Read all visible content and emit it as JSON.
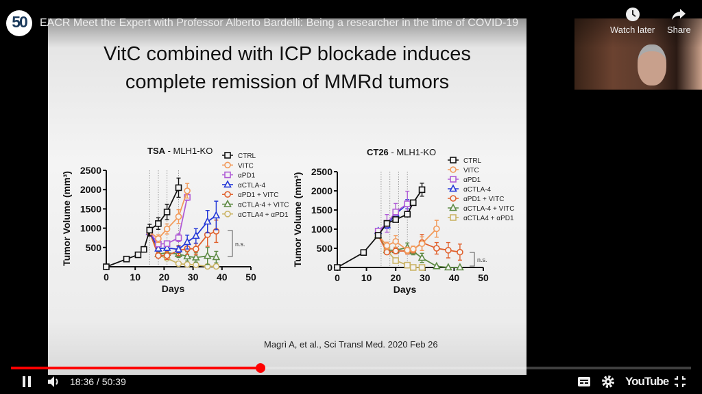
{
  "video": {
    "title": "EACR Meet the Expert with Professor Alberto Bardelli: Being a researcher in the time of COVID-19",
    "channel_logo_text": "50",
    "watch_later_label": "Watch later",
    "share_label": "Share",
    "current_time": "18:36",
    "duration": "50:39",
    "time_separator": " / ",
    "progress_fraction": 0.367,
    "brand": "YouTube",
    "accent_color": "#ff0000"
  },
  "slide": {
    "title_line1": "VitC combined with ICP blockade induces",
    "title_line2": "complete remission of MMRd tumors",
    "citation": "Magrì A, et al., Sci Transl Med. 2020 Feb 26"
  },
  "chart_data": [
    {
      "type": "line",
      "title_bold": "TSA",
      "title_rest": " - MLH1-KO",
      "xlabel": "Days",
      "ylabel": "Tumor Volume (mm³)",
      "xlim": [
        0,
        50
      ],
      "ylim": [
        0,
        2500
      ],
      "xticks": [
        0,
        10,
        20,
        30,
        40,
        50
      ],
      "yticks": [
        500,
        1000,
        1500,
        2000,
        2500
      ],
      "treatment_days": [
        15,
        18,
        21,
        25
      ],
      "annotation": "n.s.",
      "series": [
        {
          "name": "CTRL",
          "color": "#111111",
          "marker": "square",
          "x": [
            0,
            7,
            11,
            13,
            15,
            18,
            21,
            25
          ],
          "y": [
            0,
            200,
            310,
            450,
            950,
            1120,
            1420,
            2050
          ],
          "err": [
            0,
            20,
            30,
            30,
            150,
            150,
            200,
            250
          ]
        },
        {
          "name": "VITC",
          "color": "#f29a5a",
          "marker": "circle",
          "x": [
            15,
            18,
            21,
            25,
            28
          ],
          "y": [
            900,
            730,
            980,
            1300,
            1970
          ],
          "err": [
            100,
            100,
            130,
            180,
            190
          ]
        },
        {
          "name": "αPD1",
          "color": "#b05cd6",
          "marker": "square",
          "x": [
            15,
            18,
            21,
            25,
            28
          ],
          "y": [
            900,
            590,
            600,
            750,
            1800
          ],
          "err": [
            100,
            60,
            60,
            100,
            80
          ]
        },
        {
          "name": "αCTLA-4",
          "color": "#2438d8",
          "marker": "triangle",
          "x": [
            15,
            18,
            21,
            25,
            28,
            31,
            35,
            38
          ],
          "y": [
            900,
            470,
            490,
            450,
            640,
            800,
            1170,
            1330
          ],
          "err": [
            100,
            60,
            70,
            80,
            180,
            190,
            290,
            370
          ]
        },
        {
          "name": "αPD1 + VITC",
          "color": "#e0602c",
          "marker": "circle",
          "x": [
            15,
            18,
            21,
            25,
            28,
            31,
            35,
            38
          ],
          "y": [
            900,
            290,
            290,
            420,
            470,
            460,
            830,
            920
          ],
          "err": [
            100,
            60,
            100,
            130,
            150,
            150,
            300,
            290
          ]
        },
        {
          "name": "αCTLA-4 + VITC",
          "color": "#5e8a44",
          "marker": "triangle",
          "x": [
            15,
            18,
            21,
            25,
            28,
            31,
            35,
            38
          ],
          "y": [
            900,
            330,
            360,
            330,
            270,
            240,
            280,
            250
          ],
          "err": [
            100,
            60,
            80,
            90,
            120,
            120,
            220,
            150
          ]
        },
        {
          "name": "αCTLA4 + αPD1",
          "color": "#cbb466",
          "marker": "circle",
          "x": [
            15,
            18,
            21,
            25,
            28,
            31,
            35,
            38
          ],
          "y": [
            900,
            300,
            220,
            80,
            60,
            50,
            10,
            10
          ],
          "err": [
            100,
            60,
            60,
            40,
            30,
            30,
            10,
            10
          ]
        }
      ]
    },
    {
      "type": "line",
      "title_bold": "CT26",
      "title_rest": " - MLH1-KO",
      "xlabel": "Days",
      "ylabel": "Tumor Volume (mm³)",
      "xlim": [
        0,
        50
      ],
      "ylim": [
        0,
        2500
      ],
      "xticks": [
        0,
        10,
        20,
        30,
        40,
        50
      ],
      "yticks": [
        0,
        500,
        1000,
        1500,
        2000,
        2500
      ],
      "treatment_days": [
        15,
        18,
        21,
        24
      ],
      "annotation": "n.s.",
      "series": [
        {
          "name": "CTRL",
          "color": "#111111",
          "marker": "square",
          "x": [
            0,
            9,
            14,
            17,
            20,
            24,
            26,
            29
          ],
          "y": [
            0,
            390,
            840,
            1150,
            1250,
            1390,
            1690,
            2030
          ],
          "err": [
            0,
            20,
            40,
            60,
            40,
            60,
            70,
            170
          ]
        },
        {
          "name": "VITC",
          "color": "#f29a5a",
          "marker": "circle",
          "x": [
            14,
            17,
            20,
            24,
            26,
            29,
            34
          ],
          "y": [
            840,
            570,
            680,
            450,
            480,
            620,
            1010
          ],
          "err": [
            40,
            90,
            150,
            80,
            80,
            180,
            220
          ]
        },
        {
          "name": "αPD1",
          "color": "#b05cd6",
          "marker": "square",
          "x": [
            14,
            17,
            20,
            24
          ],
          "y": [
            950,
            1150,
            1450,
            1660
          ],
          "err": [
            50,
            230,
            220,
            330
          ]
        },
        {
          "name": "αCTLA-4",
          "color": "#2438d8",
          "marker": "triangle",
          "x": [
            14,
            17,
            20,
            24
          ],
          "y": [
            950,
            1100,
            1400,
            1650
          ],
          "err": [
            40,
            80,
            100,
            120
          ]
        },
        {
          "name": "αPD1 + VITC",
          "color": "#e0602c",
          "marker": "circle",
          "x": [
            14,
            17,
            20,
            24,
            26,
            29,
            34,
            38,
            42
          ],
          "y": [
            840,
            400,
            430,
            430,
            460,
            650,
            500,
            450,
            400
          ],
          "err": [
            40,
            60,
            70,
            80,
            80,
            210,
            150,
            200,
            210
          ]
        },
        {
          "name": "αCTLA-4 + VITC",
          "color": "#5e8a44",
          "marker": "triangle",
          "x": [
            14,
            17,
            20,
            24,
            26,
            29,
            34,
            38,
            42
          ],
          "y": [
            840,
            450,
            450,
            520,
            420,
            250,
            30,
            0,
            0
          ],
          "err": [
            40,
            60,
            60,
            120,
            90,
            120,
            20,
            0,
            0
          ]
        },
        {
          "name": "αCTLA4 + αPD1",
          "color": "#cbb466",
          "marker": "square",
          "x": [
            14,
            17,
            20,
            24,
            26,
            29
          ],
          "y": [
            840,
            450,
            180,
            60,
            0,
            0
          ],
          "err": [
            40,
            60,
            40,
            20,
            0,
            0
          ]
        }
      ]
    }
  ]
}
